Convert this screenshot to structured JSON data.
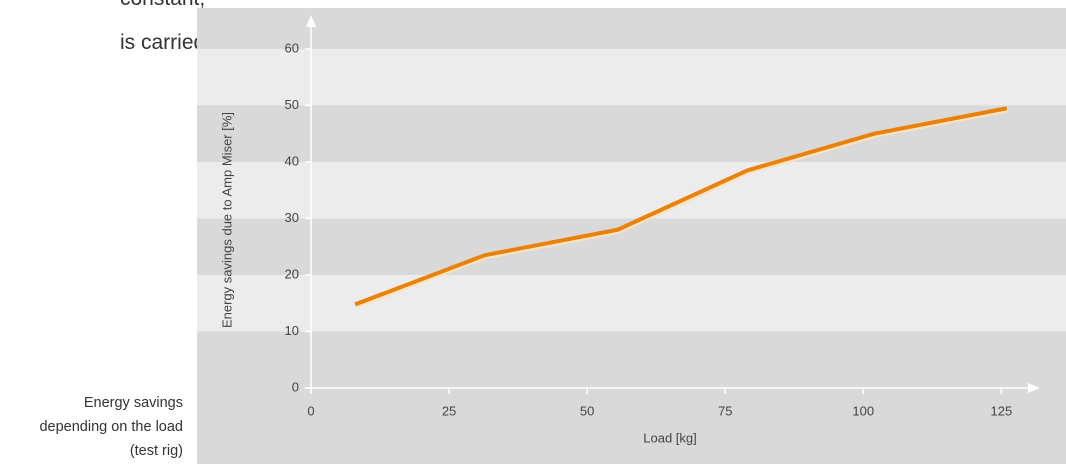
{
  "text": {
    "line1": "constant,",
    "line2": "is carried out."
  },
  "caption": [
    "Energy savings",
    "depending on the load",
    "(test rig)"
  ],
  "chart_data": {
    "type": "line",
    "x_label": "Load [kg]",
    "y_label": "Energy savings due to Amp Miser [%]",
    "x": [
      8,
      31.5,
      55.5,
      79,
      102,
      126
    ],
    "series": [
      {
        "name": "Energy savings",
        "color": "#e8820c",
        "values": [
          14.8,
          23.5,
          28,
          38.5,
          45,
          49.5
        ]
      }
    ],
    "xlim": [
      0,
      132
    ],
    "xticks": [
      0,
      25,
      50,
      75,
      100,
      125
    ],
    "ylim": [
      0,
      66
    ],
    "yticks": [
      0,
      10,
      20,
      30,
      40,
      50,
      60
    ],
    "grid": true
  }
}
